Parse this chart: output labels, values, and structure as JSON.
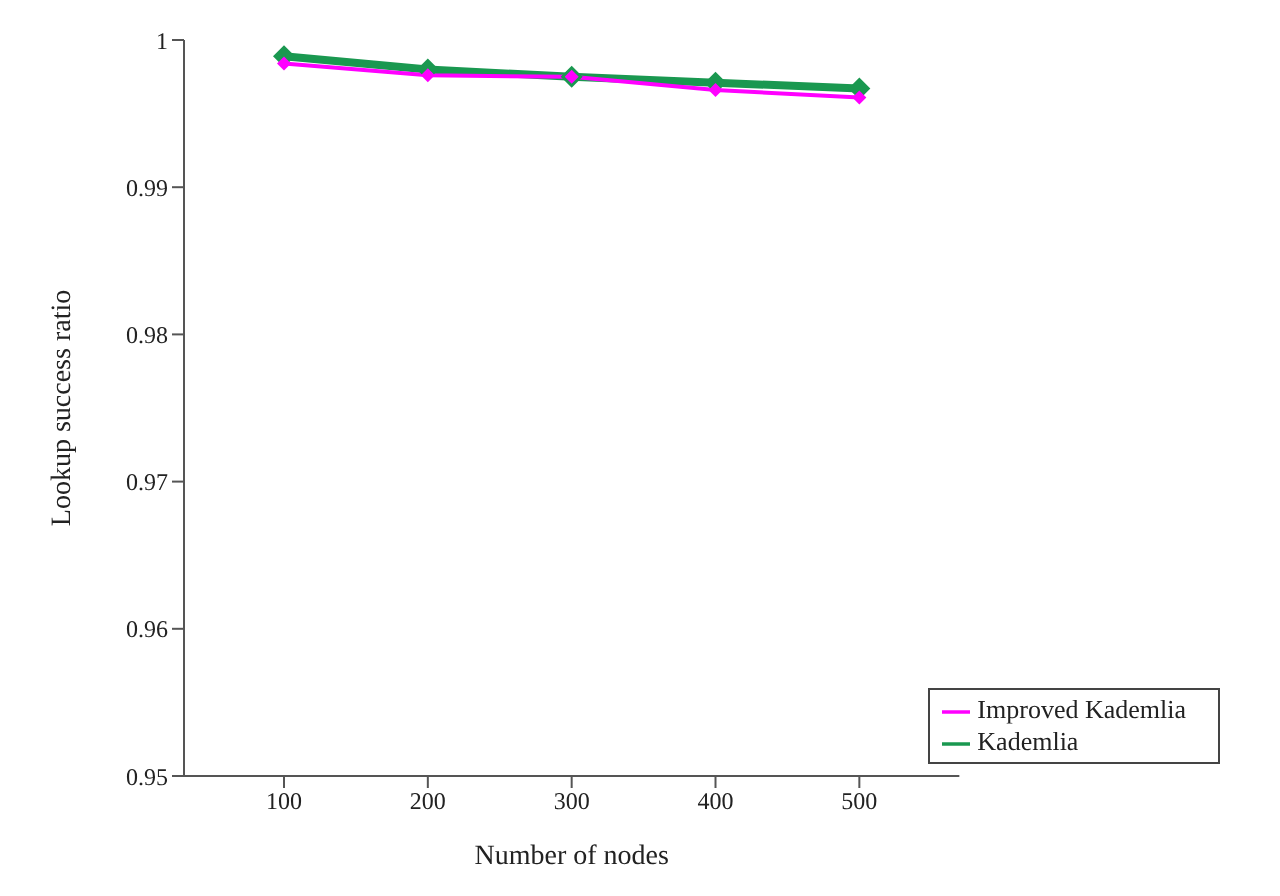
{
  "chart_data": {
    "type": "line",
    "xlabel": "Number of nodes",
    "ylabel": "Lookup success ratio",
    "categories": [
      "100",
      "200",
      "300",
      "400",
      "500"
    ],
    "series": [
      {
        "name": "Kademlia",
        "color": "#1a9850",
        "values": [
          0.9989,
          0.998,
          0.9975,
          0.9971,
          0.9967
        ]
      },
      {
        "name": "Improved Kademlia",
        "color": "#ff00ff",
        "values": [
          0.9984,
          0.9976,
          0.9975,
          0.9966,
          0.9961
        ]
      }
    ],
    "ylim": [
      0.95,
      1
    ],
    "yticks": [
      0.95,
      0.96,
      0.97,
      0.98,
      0.99,
      1
    ],
    "legend": "bottom right",
    "marker": "diamond",
    "grid": false
  }
}
